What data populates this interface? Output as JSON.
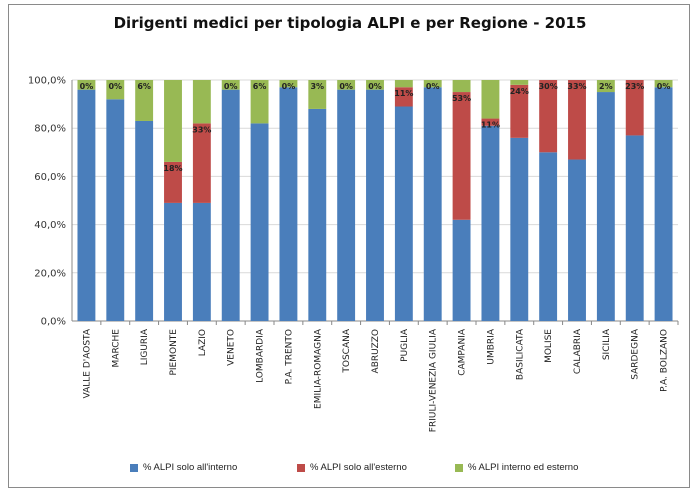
{
  "chart_data": {
    "type": "bar",
    "stacked": true,
    "title": "Dirigenti medici per tipologia ALPI e per Regione - 2015",
    "categories": [
      "VALLE D'AOSTA",
      "MARCHE",
      "LIGURIA",
      "PIEMONTE",
      "LAZIO",
      "VENETO",
      "LOMBARDIA",
      "P.A. TRENTO",
      "EMILIA-ROMAGNA",
      "TOSCANA",
      "ABRUZZO",
      "PUGLIA",
      "FRIULI-VENEZIA GIULIA",
      "CAMPANIA",
      "UMBRIA",
      "BASILICATA",
      "MOLISE",
      "CALABRIA",
      "SICILIA",
      "SARDEGNA",
      "P.A. BOLZANO"
    ],
    "series": [
      {
        "name": "% ALPI solo all'interno",
        "color": "#4a7ebb",
        "values": [
          96,
          92,
          83,
          49,
          49,
          96,
          82,
          97,
          88,
          96,
          96,
          89,
          97,
          42,
          81,
          76,
          70,
          67,
          95,
          77,
          97
        ]
      },
      {
        "name": "% ALPI solo all'esterno",
        "color": "#be4b48",
        "values": [
          0,
          0,
          0,
          17,
          33,
          0,
          0,
          0,
          0,
          0,
          0,
          8,
          0,
          53,
          3,
          22,
          30,
          33,
          0,
          23,
          0
        ]
      },
      {
        "name": "% ALPI interno ed esterno",
        "color": "#98b954",
        "values": [
          4,
          8,
          17,
          34,
          18,
          4,
          18,
          3,
          12,
          4,
          4,
          3,
          3,
          5,
          16,
          2,
          0,
          0,
          5,
          0,
          3
        ]
      }
    ],
    "data_labels": [
      "0%",
      "0%",
      "6%",
      "18%",
      "33%",
      "0%",
      "6%",
      "0%",
      "3%",
      "0%",
      "0%",
      "11%",
      "0%",
      "53%",
      "11%",
      "24%",
      "30%",
      "33%",
      "2%",
      "23%",
      "0%"
    ],
    "ylim": [
      0,
      100
    ],
    "yticks": [
      "0,0%",
      "20,0%",
      "40,0%",
      "60,0%",
      "80,0%",
      "100,0%"
    ],
    "grid": true,
    "legend_position": "bottom"
  }
}
